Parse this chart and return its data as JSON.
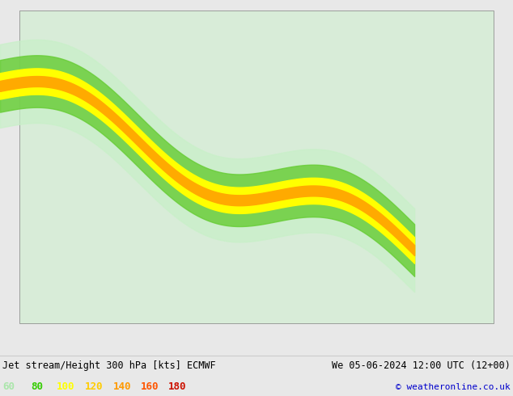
{
  "title_left": "Jet stream/Height 300 hPa [kts] ECMWF",
  "title_right": "We 05-06-2024 12:00 UTC (12+00)",
  "copyright": "© weatheronline.co.uk",
  "legend_labels": [
    "60",
    "80",
    "100",
    "120",
    "140",
    "160",
    "180"
  ],
  "legend_colors": [
    "#aae6aa",
    "#33cc00",
    "#ffff00",
    "#ffcc00",
    "#ff9900",
    "#ff5500",
    "#cc1100"
  ],
  "jet_colors": [
    "#c8f0c8",
    "#99dd66",
    "#33bb00",
    "#ffff00",
    "#ffcc00",
    "#ff9900",
    "#ff5500",
    "#cc1100"
  ],
  "jet_levels": [
    60,
    80,
    100,
    120,
    140,
    160,
    180,
    200
  ],
  "bg_color": "#e8e8e8",
  "ocean_color": "#e0e0e0",
  "land_color_light": "#d8ecd8",
  "land_color_dark": "#aacfaa",
  "canada_color": "#c5e5c5",
  "us_color": "#c8e8c8",
  "gray_land": "#c0c0c0",
  "border_color": "#888888",
  "state_border_color": "#aaaaaa",
  "contour_color": "#000000",
  "figsize": [
    6.34,
    4.9
  ],
  "dpi": 100,
  "map_extent": [
    -170,
    -50,
    15,
    80
  ],
  "title_fontsize": 8.5,
  "legend_fontsize": 9,
  "copyright_fontsize": 8
}
